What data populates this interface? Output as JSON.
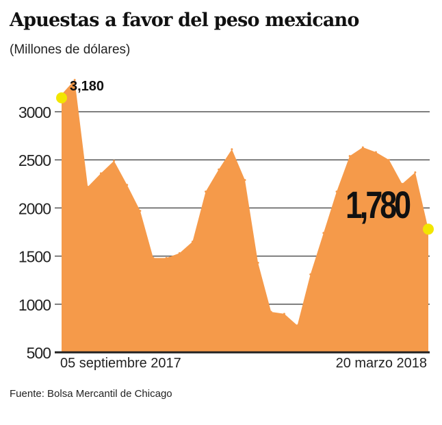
{
  "chart_data": {
    "type": "area",
    "title": "Apuestas a favor del peso mexicano",
    "subtitle": "(Millones de dólares)",
    "source": "Fuente: Bolsa Mercantil de Chicago",
    "xlabel": "",
    "ylabel": "",
    "ylim": [
      500,
      3000
    ],
    "yticks": [
      "500",
      "1000",
      "1500",
      "2000",
      "2500",
      "3000"
    ],
    "xtick_labels": [
      "05 septiembre 2017",
      "20 marzo 2018"
    ],
    "grid": true,
    "values": [
      3180,
      3330,
      2220,
      2360,
      2490,
      2240,
      1970,
      1480,
      1480,
      1530,
      1650,
      2170,
      2400,
      2610,
      2290,
      1430,
      920,
      900,
      780,
      1310,
      1740,
      2170,
      2540,
      2630,
      2580,
      2500,
      2250,
      2370,
      1780
    ],
    "annotations": [
      {
        "label": "3,180",
        "point": "first"
      },
      {
        "label": "1,780",
        "point": "last"
      }
    ],
    "colors": {
      "area": "#F59A4A",
      "highlight": "#F2E600",
      "grid": "#555555"
    }
  }
}
